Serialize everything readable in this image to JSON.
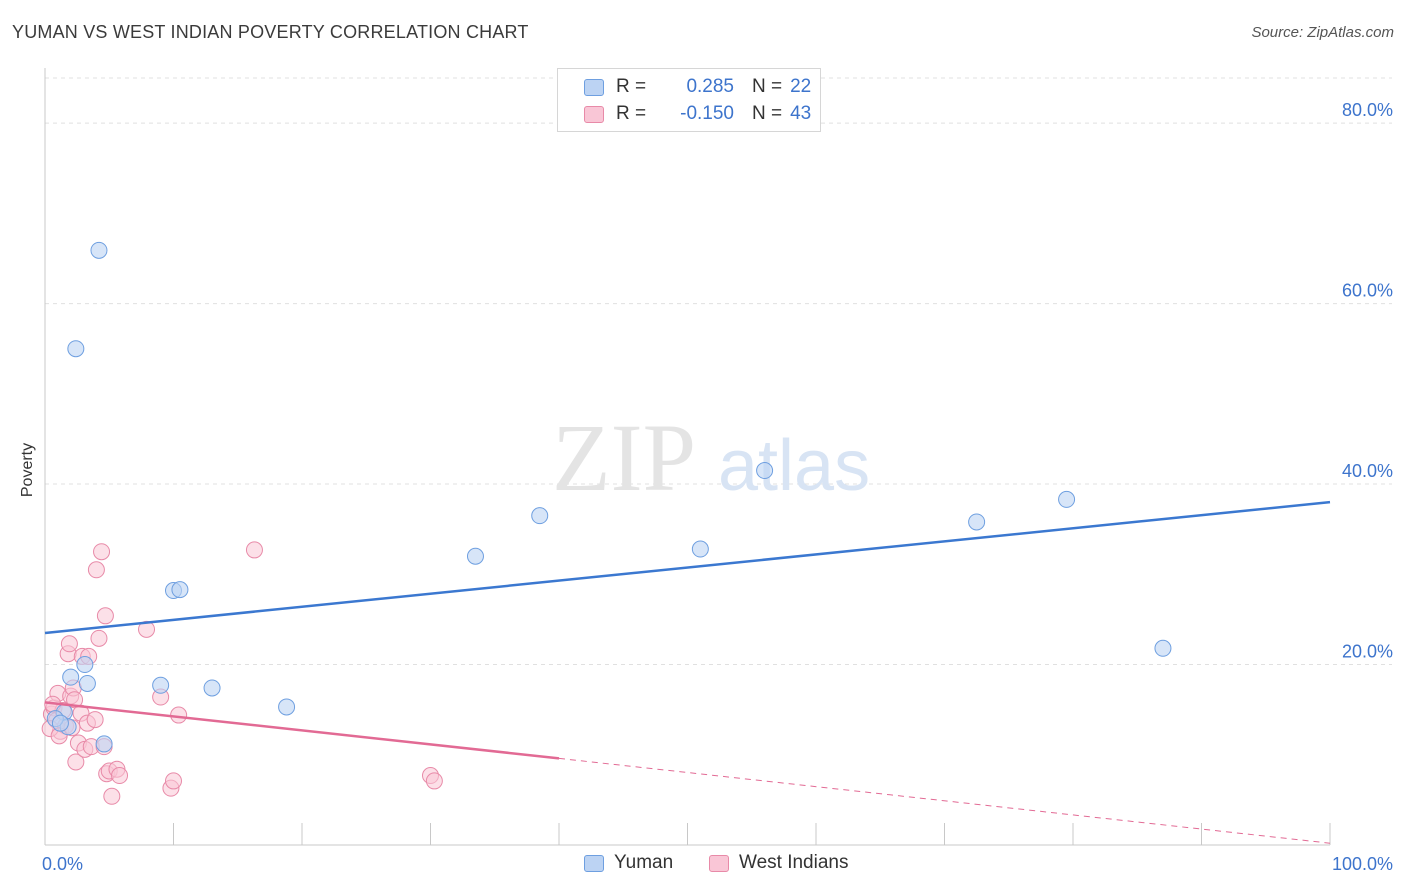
{
  "header": {
    "title": "YUMAN VS WEST INDIAN POVERTY CORRELATION CHART",
    "source": "Source: ZipAtlas.com"
  },
  "watermark": {
    "zip": "ZIP",
    "atlas": "atlas"
  },
  "legend": {
    "rows": [
      {
        "r_label": "R =",
        "r_value": "0.285",
        "n_label": "N =",
        "n_value": "22"
      },
      {
        "r_label": "R =",
        "r_value": "-0.150",
        "n_label": "N =",
        "n_value": "43"
      }
    ]
  },
  "colors": {
    "yuman_fill": "#bcd3f3",
    "yuman_stroke": "#6e9fe0",
    "yuman_line": "#3b78d0",
    "west_fill": "#f9c6d6",
    "west_stroke": "#e88aa8",
    "west_line": "#e26a94",
    "tick_label": "#3d74cc",
    "grid": "#e0e0e0"
  },
  "chart_data": {
    "type": "scatter",
    "ylabel": "Poverty",
    "xlim": [
      0,
      100
    ],
    "ylim": [
      0,
      85
    ],
    "x_tick_labels": [
      {
        "x": 0,
        "label": "0.0%"
      },
      {
        "x": 100,
        "label": "100.0%"
      }
    ],
    "y_tick_labels": [
      {
        "y": 20,
        "label": "20.0%"
      },
      {
        "y": 40,
        "label": "40.0%"
      },
      {
        "y": 60,
        "label": "60.0%"
      },
      {
        "y": 80,
        "label": "80.0%"
      }
    ],
    "grid": "horizontal dashed",
    "series": [
      {
        "name": "Yuman",
        "points": [
          [
            4.2,
            65.9
          ],
          [
            2.4,
            55.0
          ],
          [
            2.0,
            18.6
          ],
          [
            3.1,
            20.0
          ],
          [
            3.3,
            17.9
          ],
          [
            10.0,
            28.2
          ],
          [
            10.5,
            28.3
          ],
          [
            9.0,
            17.7
          ],
          [
            13.0,
            17.4
          ],
          [
            18.8,
            15.3
          ],
          [
            4.6,
            11.2
          ],
          [
            33.5,
            32.0
          ],
          [
            38.5,
            36.5
          ],
          [
            51.0,
            32.8
          ],
          [
            56.0,
            41.5
          ],
          [
            72.5,
            35.8
          ],
          [
            79.5,
            38.3
          ],
          [
            87.0,
            21.8
          ],
          [
            1.5,
            14.7
          ],
          [
            1.8,
            13.1
          ],
          [
            0.8,
            14.0
          ],
          [
            1.2,
            13.5
          ]
        ],
        "trend": {
          "x0": 0,
          "y0": 23.5,
          "x1": 100,
          "y1": 38.0
        }
      },
      {
        "name": "West Indians",
        "points": [
          [
            0.5,
            14.5
          ],
          [
            0.7,
            15.2
          ],
          [
            0.9,
            13.8
          ],
          [
            1.0,
            16.8
          ],
          [
            1.2,
            12.6
          ],
          [
            1.4,
            14.9
          ],
          [
            1.6,
            13.2
          ],
          [
            1.8,
            21.2
          ],
          [
            1.9,
            22.3
          ],
          [
            2.0,
            16.5
          ],
          [
            2.2,
            17.4
          ],
          [
            2.3,
            16.1
          ],
          [
            2.4,
            9.2
          ],
          [
            2.6,
            11.3
          ],
          [
            2.8,
            14.6
          ],
          [
            2.9,
            20.9
          ],
          [
            3.1,
            10.6
          ],
          [
            3.3,
            13.5
          ],
          [
            3.4,
            20.9
          ],
          [
            3.6,
            10.9
          ],
          [
            3.9,
            13.9
          ],
          [
            4.0,
            30.5
          ],
          [
            4.2,
            22.9
          ],
          [
            4.4,
            32.5
          ],
          [
            4.6,
            10.9
          ],
          [
            4.7,
            25.4
          ],
          [
            4.8,
            7.9
          ],
          [
            5.0,
            8.2
          ],
          [
            5.2,
            5.4
          ],
          [
            5.6,
            8.4
          ],
          [
            5.8,
            7.7
          ],
          [
            7.9,
            23.9
          ],
          [
            9.0,
            16.4
          ],
          [
            9.8,
            6.3
          ],
          [
            10.0,
            7.1
          ],
          [
            10.4,
            14.4
          ],
          [
            16.3,
            32.7
          ],
          [
            30.0,
            7.7
          ],
          [
            30.3,
            7.1
          ],
          [
            0.4,
            12.9
          ],
          [
            0.6,
            15.6
          ],
          [
            1.1,
            12.1
          ],
          [
            2.1,
            13.0
          ]
        ],
        "trend": {
          "x0": 0,
          "y0": 15.8,
          "x1": 40,
          "y1": 9.6,
          "dash_to_x": 100,
          "dash_to_y": 0.2
        }
      }
    ]
  },
  "bottom_legend": [
    {
      "name": "Yuman"
    },
    {
      "name": "West Indians"
    }
  ]
}
